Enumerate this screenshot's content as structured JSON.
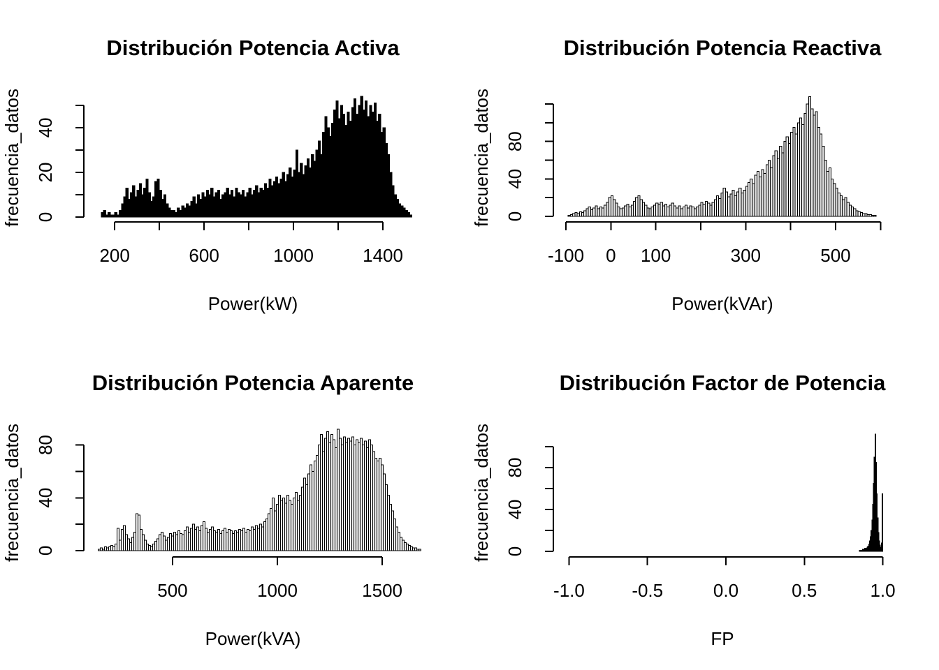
{
  "page": {
    "background": "#ffffff",
    "text_color": "#000000"
  },
  "chart_data": [
    {
      "id": "potencia-activa",
      "type": "bar",
      "title": "Distribución Potencia Activa",
      "xlabel": "Power(kW)",
      "ylabel": "frecuencia_datos",
      "style": {
        "bar_fill": "#000000",
        "bar_stroke": "#000000"
      },
      "bins": {
        "start": 140,
        "width": 10
      },
      "values": [
        2,
        3,
        1,
        2,
        1,
        1,
        2,
        1,
        3,
        6,
        9,
        13,
        8,
        11,
        14,
        9,
        12,
        15,
        10,
        13,
        17,
        11,
        7,
        9,
        16,
        17,
        12,
        8,
        10,
        6,
        4,
        3,
        3,
        2,
        4,
        3,
        5,
        4,
        6,
        5,
        7,
        9,
        6,
        10,
        8,
        11,
        9,
        12,
        10,
        13,
        9,
        11,
        12,
        8,
        10,
        11,
        13,
        10,
        12,
        9,
        13,
        11,
        10,
        12,
        9,
        11,
        13,
        10,
        12,
        14,
        11,
        13,
        12,
        15,
        13,
        17,
        14,
        16,
        18,
        15,
        17,
        20,
        16,
        19,
        22,
        18,
        21,
        30,
        20,
        24,
        19,
        23,
        26,
        22,
        28,
        25,
        30,
        34,
        28,
        38,
        45,
        40,
        36,
        42,
        48,
        52,
        44,
        50,
        46,
        41,
        47,
        43,
        49,
        53,
        46,
        50,
        54,
        48,
        52,
        45,
        50,
        47,
        51,
        43,
        46,
        38,
        40,
        33,
        28,
        20,
        14,
        10,
        8,
        6,
        5,
        4,
        3,
        2,
        1
      ],
      "xlim": [
        62,
        1578
      ],
      "ylim": [
        -2.2,
        55.6
      ],
      "x_ticks": [
        {
          "v": 200,
          "label": "200"
        },
        {
          "v": 400,
          "label": ""
        },
        {
          "v": 600,
          "label": "600"
        },
        {
          "v": 800,
          "label": ""
        },
        {
          "v": 1000,
          "label": "1000"
        },
        {
          "v": 1200,
          "label": ""
        },
        {
          "v": 1400,
          "label": "1400"
        }
      ],
      "y_ticks": [
        {
          "v": 0,
          "label": "0"
        },
        {
          "v": 10,
          "label": ""
        },
        {
          "v": 20,
          "label": "20"
        },
        {
          "v": 30,
          "label": ""
        },
        {
          "v": 40,
          "label": "40"
        },
        {
          "v": 50,
          "label": ""
        }
      ]
    },
    {
      "id": "potencia-reactiva",
      "type": "bar",
      "title": "Distribución Potencia Reactiva",
      "xlabel": "Power(kVAr)",
      "ylabel": "frecuencia_datos",
      "style": {
        "bar_fill": "#e3e3e3",
        "bar_stroke": "#000000"
      },
      "bins": {
        "start": -95,
        "width": 5
      },
      "values": [
        1,
        2,
        3,
        4,
        3,
        5,
        4,
        6,
        8,
        10,
        7,
        9,
        11,
        8,
        10,
        9,
        12,
        15,
        20,
        22,
        18,
        14,
        10,
        8,
        9,
        11,
        13,
        10,
        12,
        16,
        20,
        22,
        18,
        15,
        12,
        9,
        8,
        10,
        12,
        14,
        13,
        15,
        11,
        13,
        10,
        12,
        14,
        11,
        9,
        11,
        8,
        10,
        12,
        9,
        11,
        10,
        8,
        10,
        12,
        15,
        13,
        16,
        14,
        12,
        15,
        18,
        22,
        19,
        25,
        30,
        26,
        21,
        24,
        28,
        22,
        26,
        30,
        25,
        28,
        32,
        36,
        40,
        35,
        44,
        48,
        42,
        50,
        46,
        55,
        60,
        52,
        65,
        70,
        62,
        75,
        68,
        80,
        85,
        78,
        90,
        95,
        88,
        100,
        105,
        98,
        110,
        120,
        128,
        115,
        108,
        112,
        95,
        88,
        75,
        60,
        48,
        52,
        40,
        35,
        30,
        25,
        22,
        18,
        20,
        15,
        12,
        10,
        8,
        6,
        5,
        4,
        3,
        3,
        2,
        2,
        1,
        1
      ],
      "xlim": [
        -128,
        626
      ],
      "ylim": [
        -6,
        132
      ],
      "x_ticks": [
        {
          "v": -100,
          "label": "-100"
        },
        {
          "v": 0,
          "label": "0"
        },
        {
          "v": 100,
          "label": "100"
        },
        {
          "v": 200,
          "label": ""
        },
        {
          "v": 300,
          "label": "300"
        },
        {
          "v": 400,
          "label": ""
        },
        {
          "v": 500,
          "label": "500"
        },
        {
          "v": 600,
          "label": ""
        }
      ],
      "y_ticks": [
        {
          "v": 0,
          "label": "0"
        },
        {
          "v": 20,
          "label": ""
        },
        {
          "v": 40,
          "label": "40"
        },
        {
          "v": 60,
          "label": ""
        },
        {
          "v": 80,
          "label": "80"
        },
        {
          "v": 100,
          "label": ""
        },
        {
          "v": 120,
          "label": ""
        }
      ]
    },
    {
      "id": "potencia-aparente",
      "type": "bar",
      "title": "Distribución Potencia Aparente",
      "xlabel": "Power(kVA)",
      "ylabel": "frecuencia_datos",
      "style": {
        "bar_fill": "#efefef",
        "bar_stroke": "#000000"
      },
      "bins": {
        "start": 145,
        "width": 10
      },
      "values": [
        1,
        2,
        1,
        3,
        2,
        3,
        4,
        3,
        5,
        17,
        8,
        16,
        19,
        12,
        9,
        6,
        10,
        14,
        28,
        27,
        16,
        12,
        8,
        5,
        4,
        3,
        5,
        7,
        9,
        12,
        14,
        11,
        8,
        10,
        13,
        11,
        14,
        12,
        15,
        13,
        12,
        15,
        18,
        14,
        17,
        20,
        16,
        18,
        15,
        19,
        22,
        17,
        14,
        16,
        18,
        15,
        14,
        16,
        13,
        15,
        17,
        14,
        16,
        15,
        13,
        15,
        14,
        16,
        15,
        17,
        14,
        16,
        15,
        18,
        16,
        19,
        17,
        20,
        18,
        22,
        24,
        28,
        32,
        40,
        30,
        35,
        42,
        38,
        40,
        36,
        42,
        38,
        35,
        40,
        44,
        38,
        42,
        48,
        55,
        50,
        58,
        65,
        60,
        68,
        72,
        80,
        88,
        75,
        85,
        90,
        82,
        88,
        84,
        78,
        92,
        85,
        80,
        86,
        82,
        85,
        83,
        86,
        80,
        84,
        82,
        85,
        80,
        83,
        78,
        84,
        80,
        75,
        70,
        68,
        70,
        65,
        58,
        50,
        42,
        35,
        30,
        24,
        18,
        14,
        10,
        8,
        6,
        5,
        4,
        3,
        2,
        2,
        1,
        1
      ],
      "xlim": [
        77,
        1693
      ],
      "ylim": [
        -4.8,
        93
      ],
      "x_ticks": [
        {
          "v": 500,
          "label": "500"
        },
        {
          "v": 1000,
          "label": "1000"
        },
        {
          "v": 1500,
          "label": "1500"
        }
      ],
      "y_ticks": [
        {
          "v": 0,
          "label": "0"
        },
        {
          "v": 20,
          "label": ""
        },
        {
          "v": 40,
          "label": "40"
        },
        {
          "v": 60,
          "label": ""
        },
        {
          "v": 80,
          "label": "80"
        }
      ]
    },
    {
      "id": "factor-de-potencia",
      "type": "bar",
      "title": "Distribución Factor de Potencia",
      "xlabel": "FP",
      "ylabel": "frecuencia_datos",
      "style": {
        "bar_fill": "#000000",
        "bar_stroke": "#000000"
      },
      "bins": {
        "start": 0.85,
        "width": 0.005
      },
      "values": [
        1,
        0,
        1,
        1,
        2,
        1,
        2,
        3,
        2,
        3,
        4,
        5,
        7,
        10,
        14,
        20,
        30,
        45,
        65,
        90,
        112,
        85,
        55,
        32,
        18,
        10,
        6,
        4,
        8,
        55
      ],
      "xlim": [
        -1.1,
        1.06
      ],
      "ylim": [
        -5.3,
        118
      ],
      "x_ticks": [
        {
          "v": -1.0,
          "label": "-1.0"
        },
        {
          "v": -0.5,
          "label": "-0.5"
        },
        {
          "v": 0.0,
          "label": "0.0"
        },
        {
          "v": 0.5,
          "label": "0.5"
        },
        {
          "v": 1.0,
          "label": "1.0"
        }
      ],
      "y_ticks": [
        {
          "v": 0,
          "label": "0"
        },
        {
          "v": 20,
          "label": ""
        },
        {
          "v": 40,
          "label": "40"
        },
        {
          "v": 60,
          "label": ""
        },
        {
          "v": 80,
          "label": "80"
        },
        {
          "v": 100,
          "label": ""
        }
      ]
    }
  ]
}
